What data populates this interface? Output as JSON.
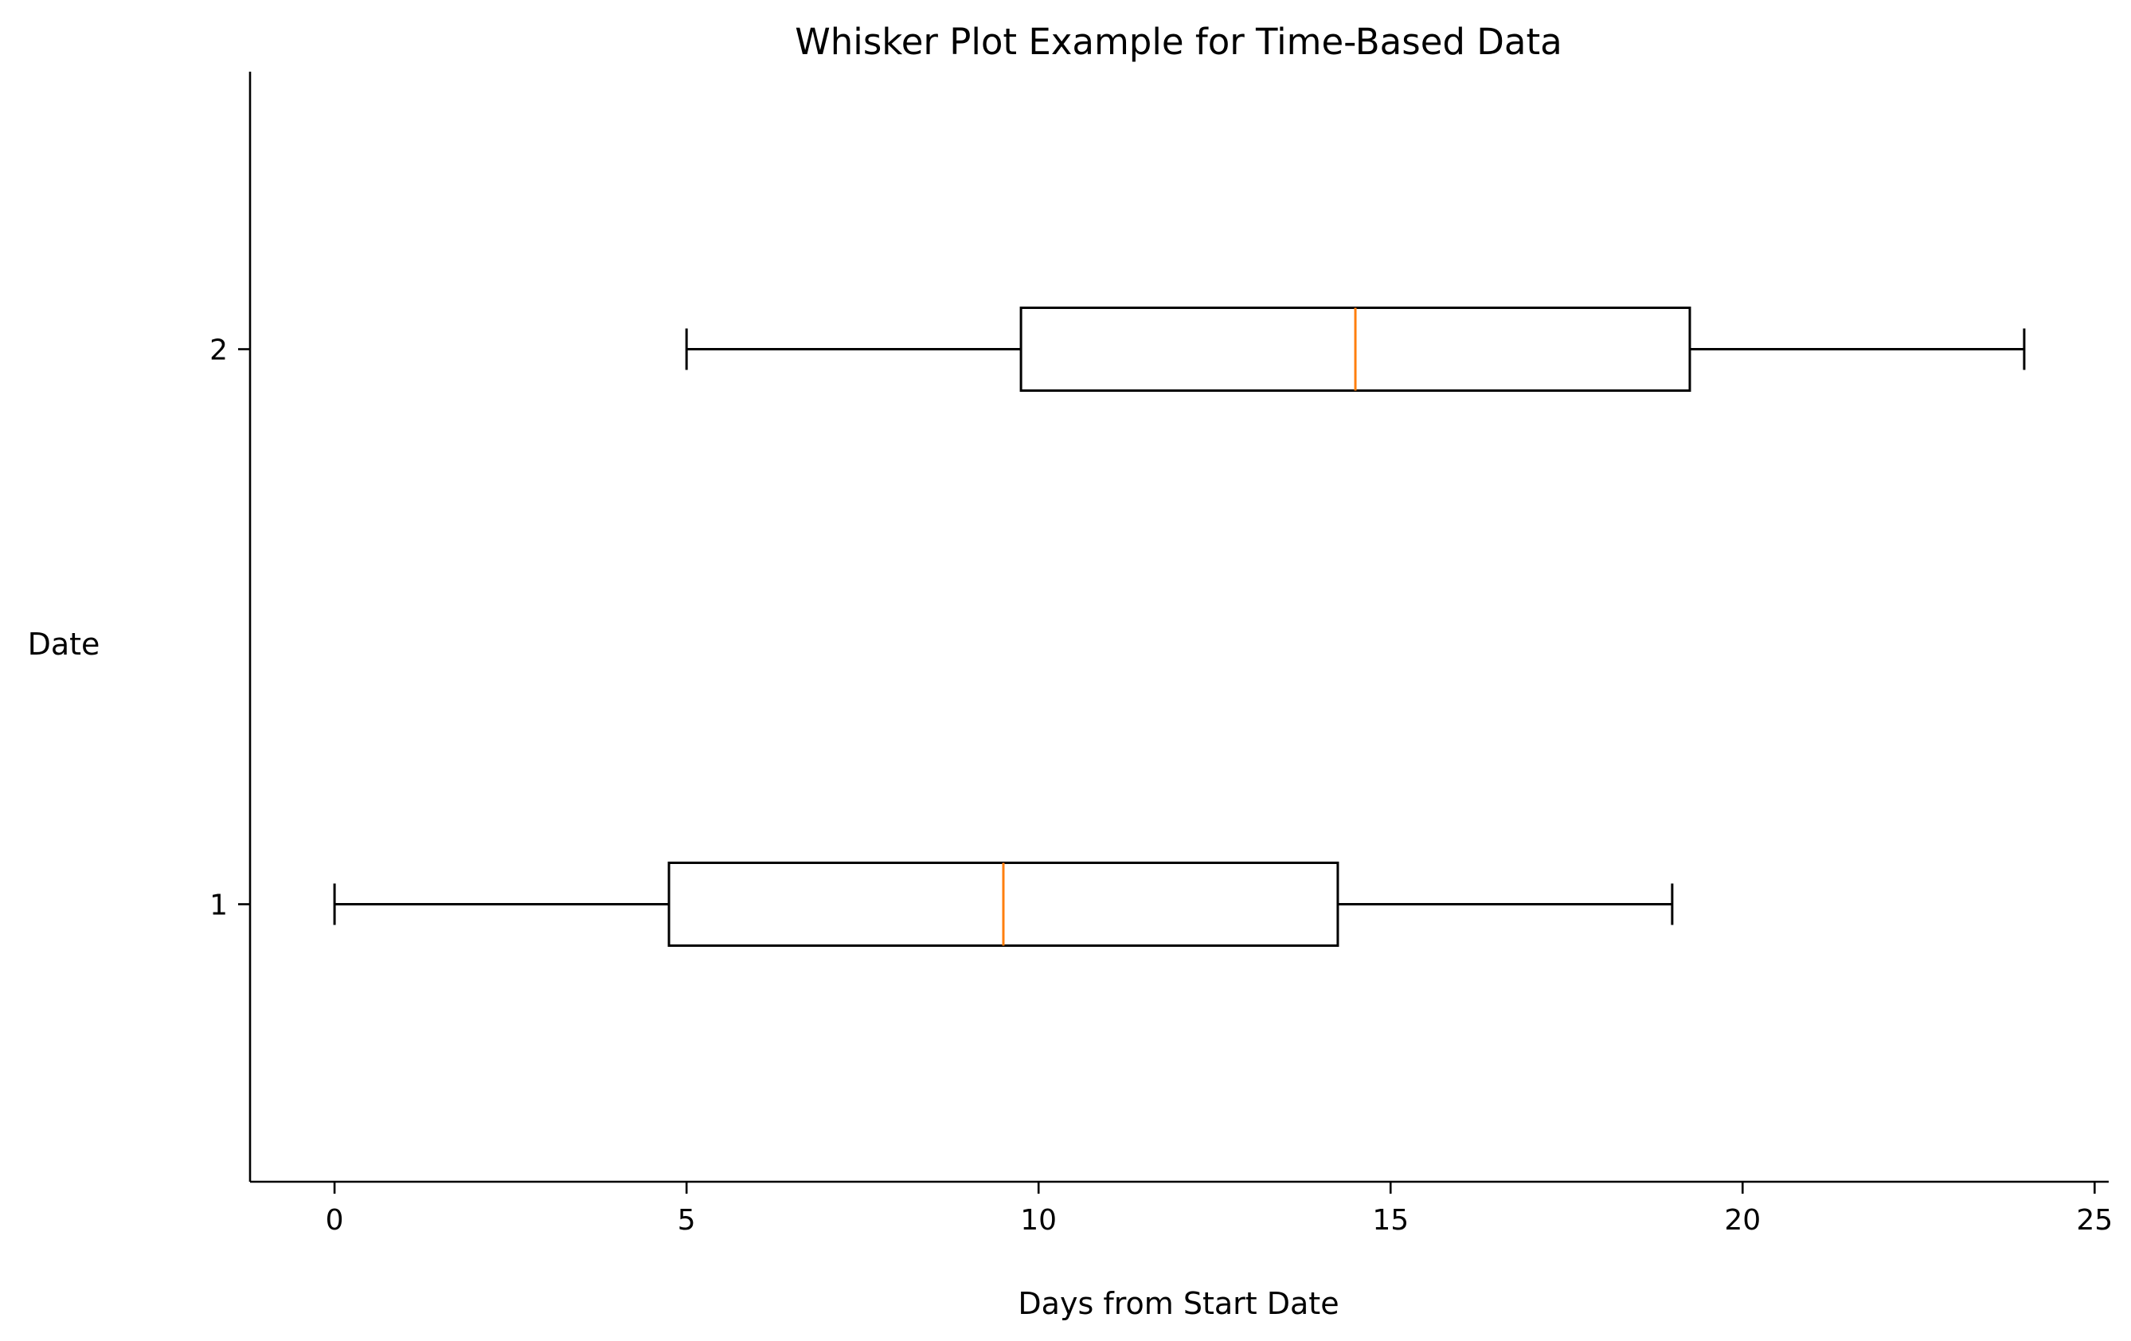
{
  "chart_data": {
    "type": "boxplot",
    "orientation": "horizontal",
    "title": "Whisker Plot Example for Time-Based Data",
    "xlabel": "Days from Start Date",
    "ylabel": "Date",
    "xlim": [
      -1.2,
      25.2
    ],
    "ylim": [
      0.5,
      2.5
    ],
    "x_ticks": [
      0,
      5,
      10,
      15,
      20,
      25
    ],
    "y_ticks": [
      1,
      2
    ],
    "grid": false,
    "legend": "none",
    "box_color": "#000000",
    "median_color": "#ff7f0e",
    "boxes": [
      {
        "position": 1,
        "whisker_low": 0,
        "q1": 4.75,
        "median": 9.5,
        "q3": 14.25,
        "whisker_high": 19
      },
      {
        "position": 2,
        "whisker_low": 5,
        "q1": 9.75,
        "median": 14.5,
        "q3": 19.25,
        "whisker_high": 24
      }
    ]
  }
}
